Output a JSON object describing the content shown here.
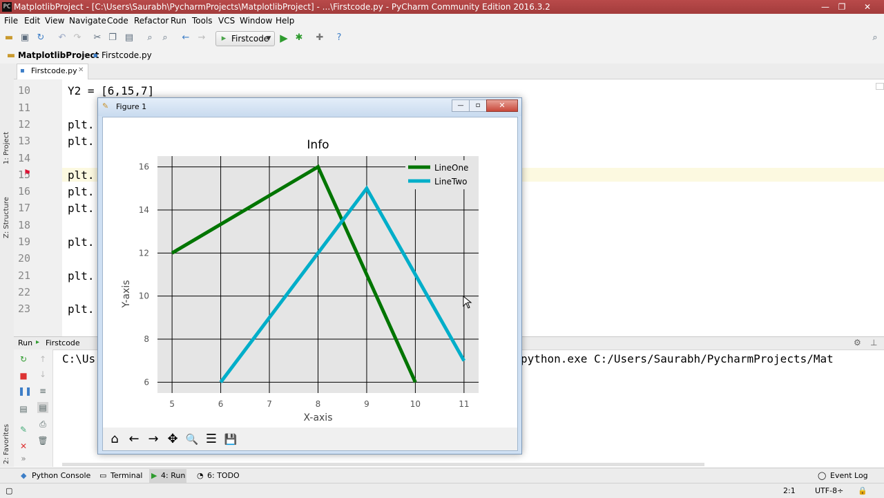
{
  "window": {
    "title": "MatplotlibProject - [C:\\Users\\Saurabh\\PycharmProjects\\MatplotlibProject] - ...\\Firstcode.py - PyCharm Community Edition 2016.3.2",
    "app_icon": "PC",
    "minimize": "—",
    "restore": "❐",
    "close": "✕"
  },
  "menu": [
    "File",
    "Edit",
    "View",
    "Navigate",
    "Code",
    "Refactor",
    "Run",
    "Tools",
    "VCS",
    "Window",
    "Help"
  ],
  "toolbar": {
    "run_config": "Firstcode"
  },
  "breadcrumb": {
    "project": "MatplotlibProject",
    "file": "Firstcode.py"
  },
  "editor_tab": {
    "label": "Firstcode.py",
    "close": "✕"
  },
  "side_tabs": {
    "project": "1: Project",
    "structure": "Z: Structure",
    "favorites": "2: Favorites"
  },
  "editor": {
    "lines": [
      {
        "num": "10",
        "code": "Y2 = [6,15,7]"
      },
      {
        "num": "11",
        "code": ""
      },
      {
        "num": "12",
        "code": "plt."
      },
      {
        "num": "13",
        "code": "plt."
      },
      {
        "num": "14",
        "code": ""
      },
      {
        "num": "15",
        "code": "plt."
      },
      {
        "num": "16",
        "code": "plt."
      },
      {
        "num": "17",
        "code": "plt."
      },
      {
        "num": "18",
        "code": ""
      },
      {
        "num": "19",
        "code": "plt."
      },
      {
        "num": "20",
        "code": ""
      },
      {
        "num": "21",
        "code": "plt."
      },
      {
        "num": "22",
        "code": ""
      },
      {
        "num": "23",
        "code": "plt."
      }
    ]
  },
  "run_panel": {
    "label": "Run",
    "config": "Firstcode",
    "console_left": "C:\\Us",
    "console_right": "python.exe C:/Users/Saurabh/PycharmProjects/Mat"
  },
  "bottom_tabs": {
    "python_console": "Python Console",
    "terminal": "Terminal",
    "run": "4: Run",
    "todo": "6: TODO",
    "event_log": "Event Log"
  },
  "status": {
    "position": "2:1",
    "encoding": "UTF-8÷"
  },
  "figure": {
    "window_title": "Figure 1",
    "minimize": "—",
    "restore": "▫",
    "close": "✕",
    "toolbar": {
      "home": "⌂",
      "back": "←",
      "forward": "→",
      "pan": "✥",
      "zoom": "🔍",
      "configure": "☰",
      "save": "💾"
    }
  },
  "chart_data": {
    "type": "line",
    "title": "Info",
    "xlabel": "X-axis",
    "ylabel": "Y-axis",
    "xlim": [
      4.7,
      11.3
    ],
    "ylim": [
      5.5,
      16.5
    ],
    "xticks": [
      5,
      6,
      7,
      8,
      9,
      10,
      11
    ],
    "yticks": [
      6,
      8,
      10,
      12,
      14,
      16
    ],
    "grid": true,
    "legend_position": "top-right",
    "series": [
      {
        "name": "LineOne",
        "color": "#007500",
        "x": [
          5,
          8,
          10
        ],
        "y": [
          12,
          16,
          6
        ]
      },
      {
        "name": "LineTwo",
        "color": "#00aec9",
        "x": [
          6,
          9,
          11
        ],
        "y": [
          6,
          15,
          7
        ]
      }
    ]
  }
}
